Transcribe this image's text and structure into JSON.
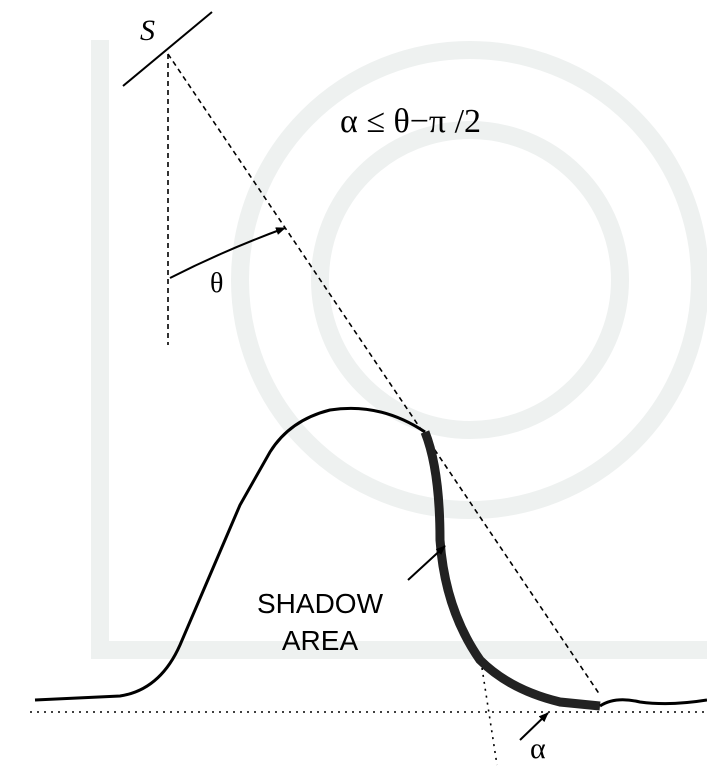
{
  "labels": {
    "sensor": "S",
    "condition": "α ≤ θ−π /2",
    "theta": "θ",
    "shadow_line1": "SHADOW",
    "shadow_line2": "AREA",
    "alpha": "α"
  }
}
